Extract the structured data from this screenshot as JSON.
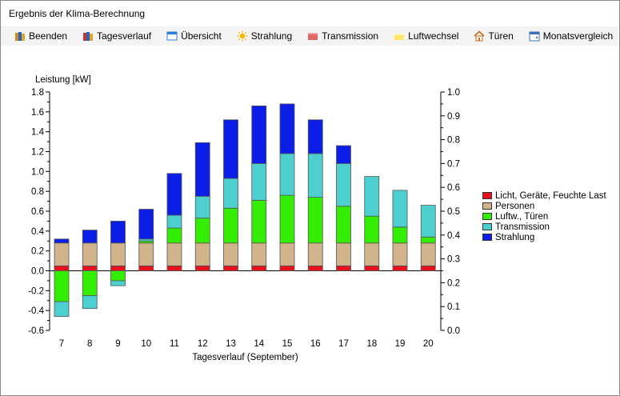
{
  "window": {
    "title": "Ergebnis der Klima-Berechnung"
  },
  "toolbar": {
    "items": [
      {
        "label": "Beenden",
        "icon": "books-icon",
        "color": "#d08a1a"
      },
      {
        "label": "Tagesverlauf",
        "icon": "books-icon",
        "color": "#c0392b"
      },
      {
        "label": "Übersicht",
        "icon": "window-icon",
        "color": "#2c7fd8"
      },
      {
        "label": "Strahlung",
        "icon": "sun-icon",
        "color": "#f5b800"
      },
      {
        "label": "Transmission",
        "icon": "wall-icon",
        "color": "#e06666"
      },
      {
        "label": "Luftwechsel",
        "icon": "air-icon",
        "color": "#ffe66b"
      },
      {
        "label": "Türen",
        "icon": "house-icon",
        "color": "#c96a1a"
      },
      {
        "label": "Monatsvergleich",
        "icon": "calendar-icon",
        "color": "#3a6fb5"
      }
    ]
  },
  "chart_data": {
    "type": "bar",
    "stacked": true,
    "ylabel": "Leistung [kW]",
    "xlabel": "Tagesverlauf (September)",
    "categories": [
      "7",
      "8",
      "9",
      "10",
      "11",
      "12",
      "13",
      "14",
      "15",
      "16",
      "17",
      "18",
      "19",
      "20"
    ],
    "ylim": [
      -0.6,
      1.8
    ],
    "yticks": [
      "1.8",
      "1.6",
      "1.4",
      "1.2",
      "1.0",
      "0.8",
      "0.6",
      "0.4",
      "0.2",
      "0.0",
      "-0.2",
      "-0.4",
      "-0.6"
    ],
    "ylim_right": [
      0.0,
      1.0
    ],
    "yticks_right": [
      "1.0",
      "0.9",
      "0.8",
      "0.7",
      "0.6",
      "0.5",
      "0.4",
      "0.3",
      "0.2",
      "0.1",
      "0.0"
    ],
    "series": [
      {
        "name": "Licht, Geräte, Feuchte Last",
        "color": "#e8101a",
        "values": [
          0.05,
          0.05,
          0.05,
          0.05,
          0.05,
          0.05,
          0.05,
          0.05,
          0.05,
          0.05,
          0.05,
          0.05,
          0.05,
          0.05
        ]
      },
      {
        "name": "Personen",
        "color": "#d2b48c",
        "values": [
          0.23,
          0.23,
          0.23,
          0.23,
          0.23,
          0.23,
          0.23,
          0.23,
          0.23,
          0.23,
          0.23,
          0.23,
          0.23,
          0.23
        ]
      },
      {
        "name": "Luftw., Türen",
        "color": "#33ee00",
        "values": [
          -0.31,
          -0.25,
          -0.1,
          0.02,
          0.15,
          0.25,
          0.35,
          0.43,
          0.48,
          0.46,
          0.37,
          0.27,
          0.16,
          0.06
        ]
      },
      {
        "name": "Transmission",
        "color": "#4dcfcf",
        "values": [
          -0.15,
          -0.13,
          -0.05,
          0.02,
          0.13,
          0.22,
          0.3,
          0.37,
          0.42,
          0.44,
          0.43,
          0.4,
          0.37,
          0.32
        ]
      },
      {
        "name": "Strahlung",
        "color": "#0a1ee8",
        "values": [
          0.04,
          0.13,
          0.22,
          0.3,
          0.42,
          0.54,
          0.59,
          0.58,
          0.5,
          0.34,
          0.18,
          0.0,
          0.0,
          0.0
        ]
      }
    ],
    "legend_position": "right"
  }
}
